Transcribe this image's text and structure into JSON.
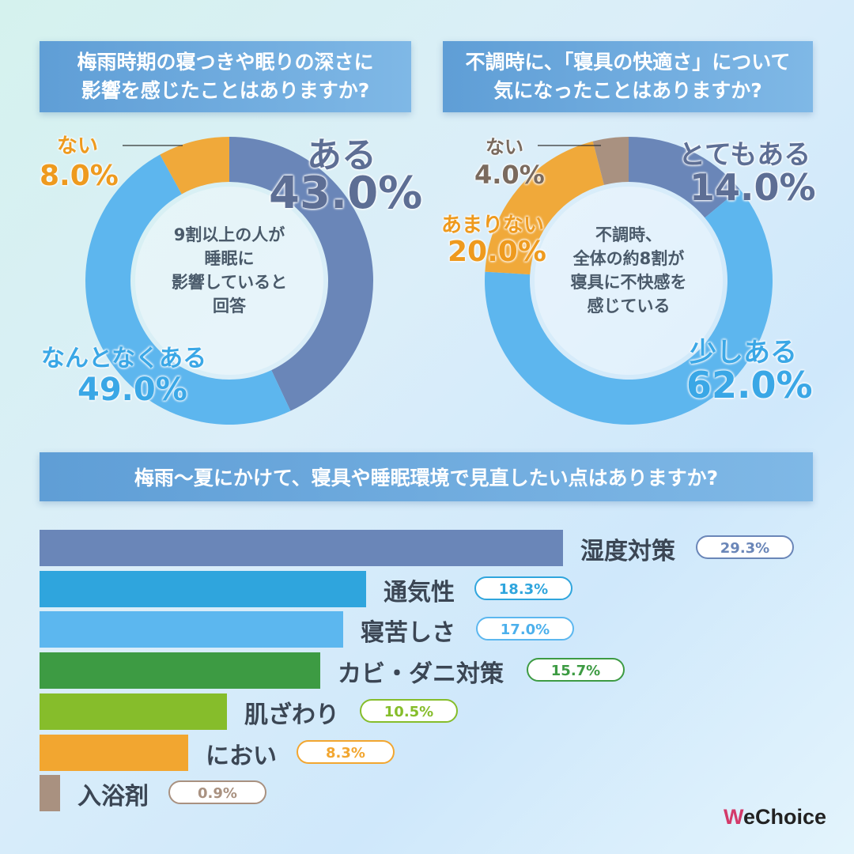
{
  "q1": {
    "title_line1": "梅雨時期の寝つきや眠りの深さに",
    "title_line2": "影響を感じたことはありますか?",
    "center_lines": [
      "9割以上の人が",
      "睡眠に",
      "影響していると",
      "回答"
    ]
  },
  "q2": {
    "title_line1": "不調時に、「寝具の快適さ」について",
    "title_line2": "気になったことはありますか?",
    "center_lines": [
      "不調時、",
      "全体の約8割が",
      "寝具に不快感を",
      "感じている"
    ]
  },
  "q3": {
    "title": "梅雨〜夏にかけて、寝具や睡眠環境で見直したい点はありますか?"
  },
  "chart_data": [
    {
      "type": "pie",
      "subtype": "donut",
      "title": "梅雨時期の寝つきや眠りの深さに影響を感じたことはありますか?",
      "slices": [
        {
          "label": "ある",
          "value": 43.0,
          "display": "43.0%",
          "color": "#6a86b8"
        },
        {
          "label": "なんとなくある",
          "value": 49.0,
          "display": "49.0%",
          "color": "#5db6ee"
        },
        {
          "label": "ない",
          "value": 8.0,
          "display": "8.0%",
          "color": "#f0a93a"
        }
      ]
    },
    {
      "type": "pie",
      "subtype": "donut",
      "title": "不調時に、「寝具の快適さ」について気になったことはありますか?",
      "slices": [
        {
          "label": "とてもある",
          "value": 14.0,
          "display": "14.0%",
          "color": "#6a86b8"
        },
        {
          "label": "少しある",
          "value": 62.0,
          "display": "62.0%",
          "color": "#5db6ee"
        },
        {
          "label": "あまりない",
          "value": 20.0,
          "display": "20.0%",
          "color": "#f0a93a"
        },
        {
          "label": "ない",
          "value": 4.0,
          "display": "4.0%",
          "color": "#a99180"
        }
      ]
    },
    {
      "type": "bar",
      "orientation": "horizontal",
      "title": "梅雨〜夏にかけて、寝具や睡眠環境で見直したい点はありますか?",
      "categories": [
        "湿度対策",
        "通気性",
        "寝苦しさ",
        "カビ・ダニ対策",
        "肌ざわり",
        "におい",
        "入浴剤"
      ],
      "values": [
        29.3,
        18.3,
        17.0,
        15.7,
        10.5,
        8.3,
        0.9
      ],
      "display": [
        "29.3%",
        "18.3%",
        "17.0%",
        "15.7%",
        "10.5%",
        "8.3%",
        "0.9%"
      ],
      "colors": [
        "#6a86b8",
        "#2fa5dd",
        "#5cb7ef",
        "#3d9b43",
        "#86bd2b",
        "#f2a630",
        "#a99180"
      ],
      "xlim": [
        0,
        29.3
      ]
    }
  ],
  "brand": {
    "logo_w": "W",
    "logo_rest": "eChoice"
  }
}
